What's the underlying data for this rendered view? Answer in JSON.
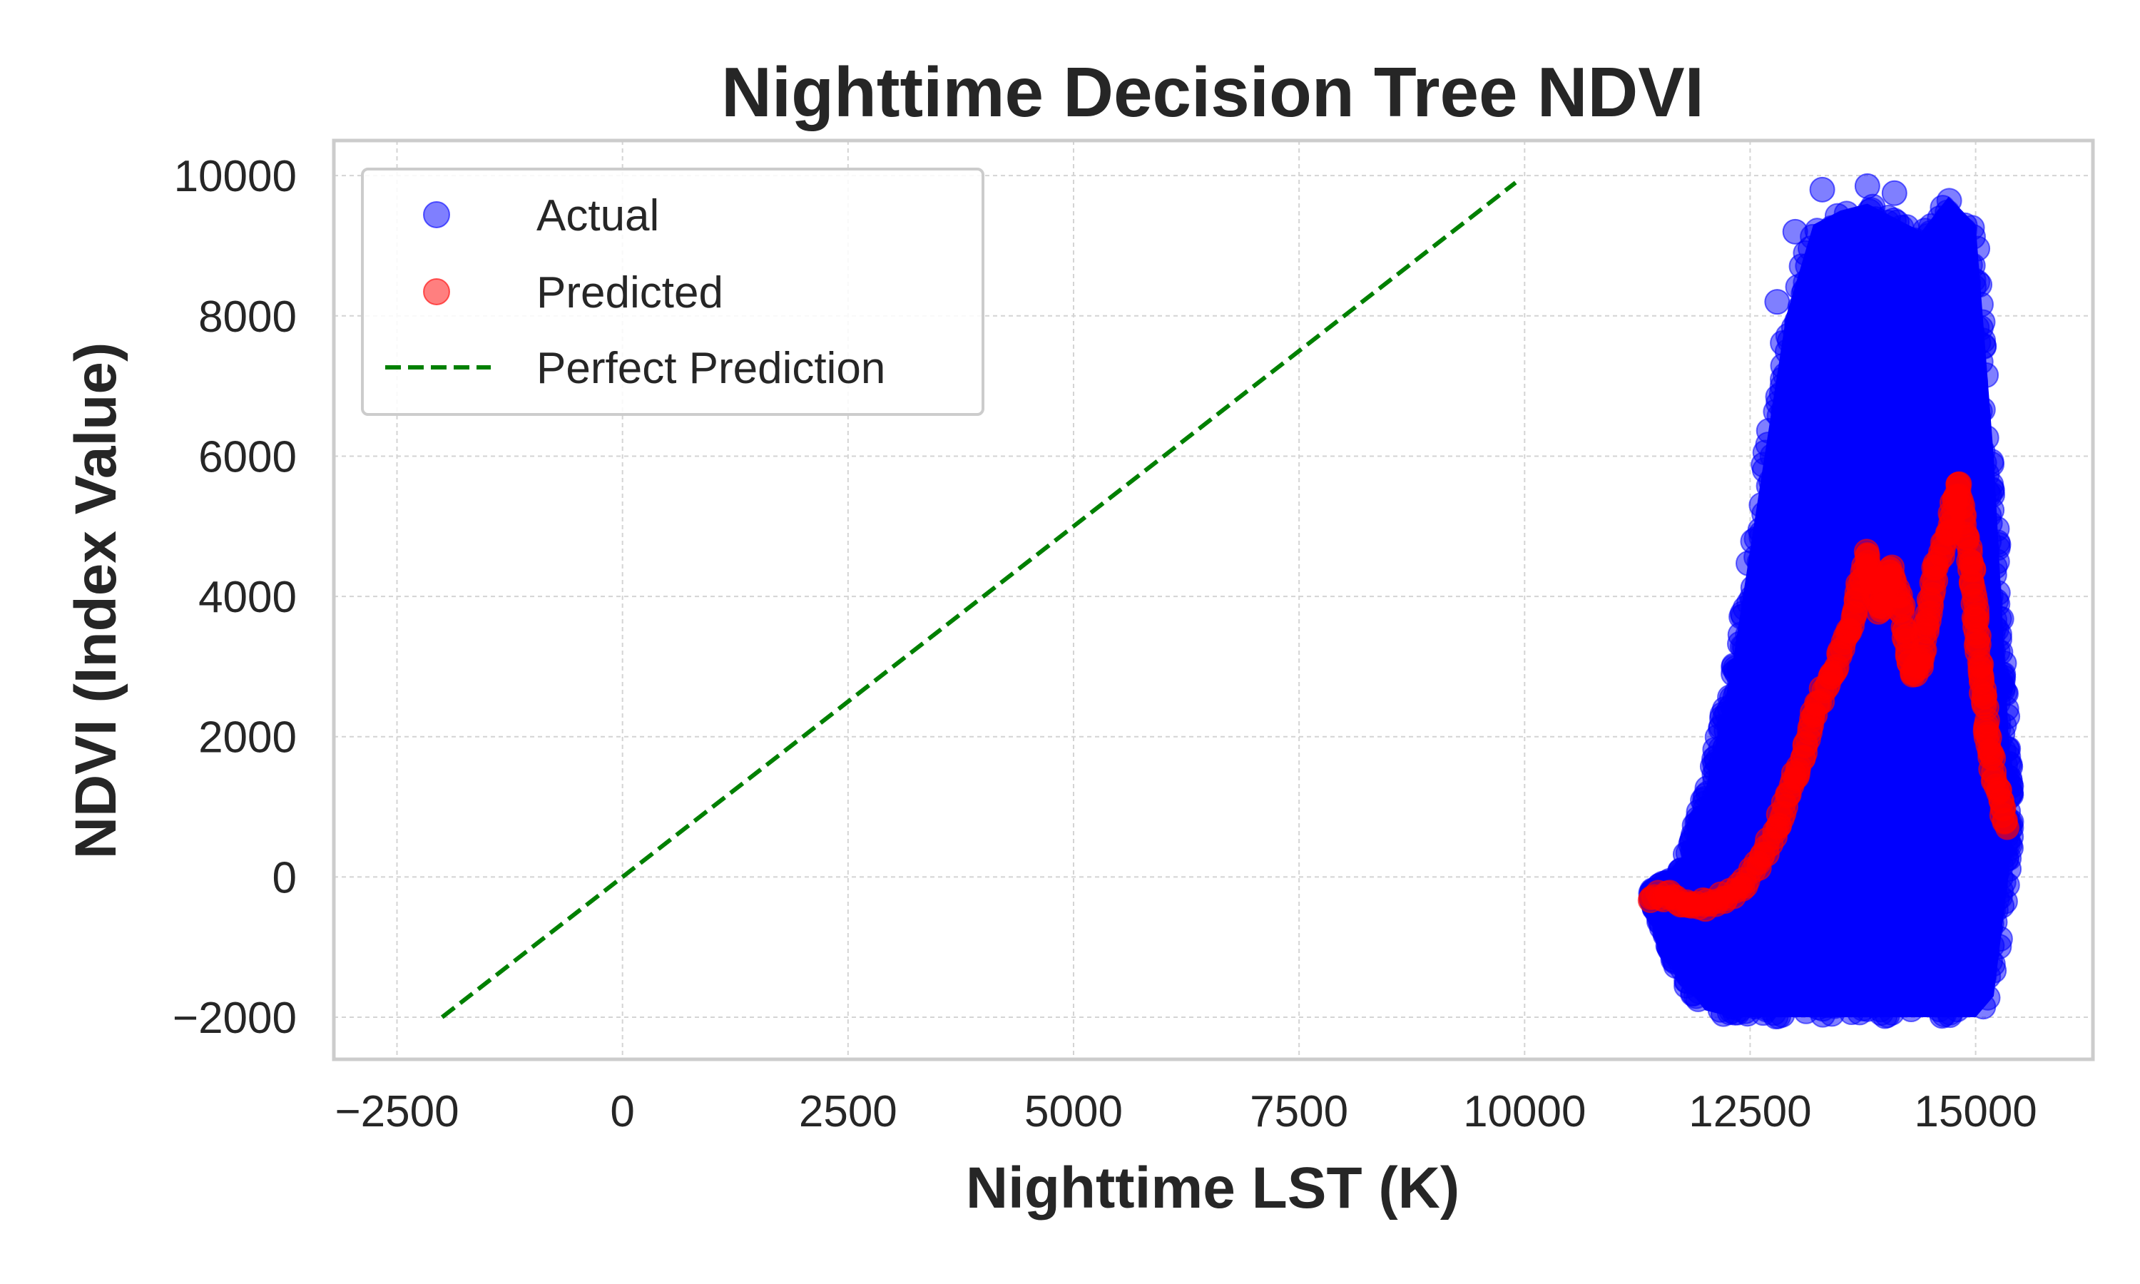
{
  "chart_data": {
    "type": "scatter",
    "title": "Nighttime Decision Tree NDVI",
    "xlabel": "Nighttime LST (K)",
    "ylabel": "NDVI (Index Value)",
    "xlim": [
      -3200,
      16300
    ],
    "ylim": [
      -2600,
      10500
    ],
    "xticks": [
      -2500,
      0,
      2500,
      5000,
      7500,
      10000,
      12500,
      15000
    ],
    "xtick_labels": [
      "−2500",
      "0",
      "2500",
      "5000",
      "7500",
      "10000",
      "12500",
      "15000"
    ],
    "yticks": [
      -2000,
      0,
      2000,
      4000,
      6000,
      8000,
      10000
    ],
    "ytick_labels": [
      "−2000",
      "0",
      "2000",
      "4000",
      "6000",
      "8000",
      "10000"
    ],
    "grid": true,
    "legend_position": "top-left",
    "series": [
      {
        "name": "Actual",
        "kind": "scatter",
        "color": "#0000ff",
        "x_range": [
          11400,
          15400
        ],
        "y_range": [
          -2000,
          9900
        ],
        "envelope": [
          {
            "x": 11400,
            "ymin": -300,
            "ymax": -200
          },
          {
            "x": 11700,
            "ymin": -1400,
            "ymax": 50
          },
          {
            "x": 12000,
            "ymin": -1900,
            "ymax": 1200
          },
          {
            "x": 12300,
            "ymin": -2000,
            "ymax": 3000
          },
          {
            "x": 12600,
            "ymin": -2000,
            "ymax": 5500
          },
          {
            "x": 12900,
            "ymin": -2000,
            "ymax": 8000
          },
          {
            "x": 13200,
            "ymin": -2000,
            "ymax": 9300
          },
          {
            "x": 13500,
            "ymin": -2000,
            "ymax": 9500
          },
          {
            "x": 13800,
            "ymin": -2000,
            "ymax": 9600
          },
          {
            "x": 14100,
            "ymin": -2000,
            "ymax": 9400
          },
          {
            "x": 14400,
            "ymin": -2000,
            "ymax": 9200
          },
          {
            "x": 14700,
            "ymin": -2000,
            "ymax": 9700
          },
          {
            "x": 15000,
            "ymin": -2000,
            "ymax": 9300
          },
          {
            "x": 15200,
            "ymin": -1700,
            "ymax": 6000
          },
          {
            "x": 15400,
            "ymin": 400,
            "ymax": 1200
          }
        ],
        "outliers": [
          {
            "x": 13300,
            "y": 9800
          },
          {
            "x": 13800,
            "y": 9850
          },
          {
            "x": 14100,
            "y": 9750
          },
          {
            "x": 12800,
            "y": 8200
          },
          {
            "x": 13000,
            "y": 9200
          }
        ]
      },
      {
        "name": "Predicted",
        "kind": "scatter",
        "color": "#ff0000",
        "x": [
          11400,
          11600,
          11800,
          12000,
          12200,
          12400,
          12600,
          12800,
          13000,
          13200,
          13400,
          13600,
          13800,
          13850,
          13950,
          14050,
          14150,
          14300,
          14400,
          14550,
          14700,
          14800,
          14950,
          15050,
          15150,
          15250,
          15350
        ],
        "y": [
          -300,
          -300,
          -350,
          -400,
          -300,
          -150,
          200,
          700,
          1400,
          2300,
          2900,
          3500,
          4600,
          4200,
          3800,
          4400,
          4000,
          2900,
          3100,
          4400,
          4900,
          5600,
          4500,
          3000,
          1800,
          1200,
          700
        ]
      },
      {
        "name": "Perfect Prediction",
        "kind": "line",
        "style": "dashed",
        "color": "#008000",
        "x": [
          -2000,
          9900
        ],
        "y": [
          -2000,
          9900
        ]
      }
    ]
  }
}
